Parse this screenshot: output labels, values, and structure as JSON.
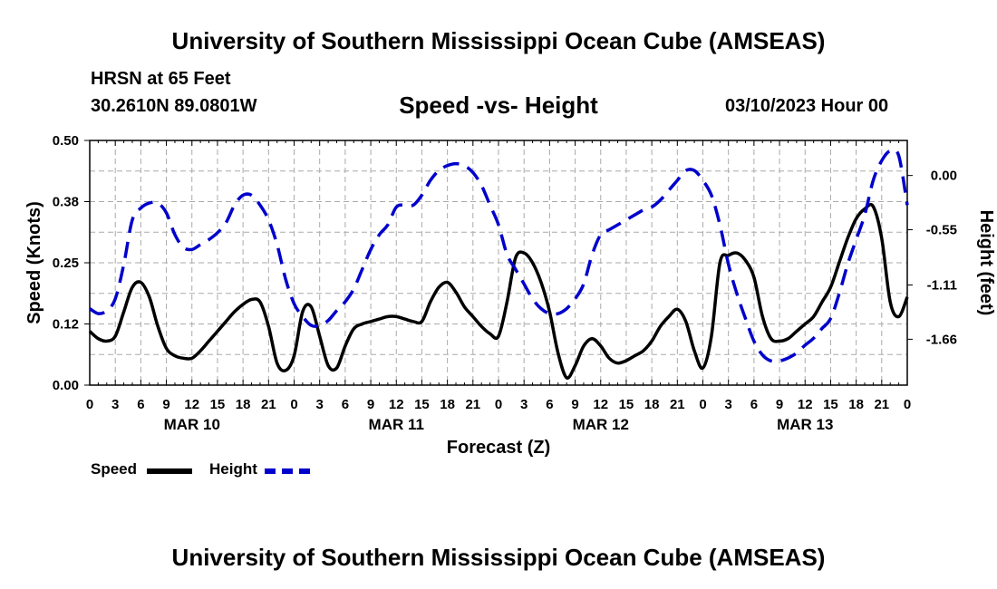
{
  "header": {
    "title": "University of Southern Mississippi Ocean Cube (AMSEAS)",
    "station": "HRSN at 65 Feet",
    "coords": "30.2610N  89.0801W",
    "subtitle": "Speed -vs- Height",
    "datetime": "03/10/2023 Hour 00",
    "footer_title": "University of Southern Mississippi Ocean Cube (AMSEAS)"
  },
  "legend": {
    "speed_label": "Speed",
    "height_label": "Height"
  },
  "colors": {
    "speed": "#000000",
    "height": "#0000cc",
    "grid": "#aaaaaa"
  },
  "chart_data": {
    "type": "line",
    "title": "Speed -vs- Height",
    "xlabel": "Forecast (Z)",
    "ylabel": "Speed (Knots)",
    "y2label": "Height (feet)",
    "xlim": [
      0,
      96
    ],
    "ylim": [
      0,
      0.5
    ],
    "y2lim": [
      -2.125,
      0.355
    ],
    "x_tick_labels": [
      "0",
      "3",
      "6",
      "9",
      "12",
      "15",
      "18",
      "21",
      "0",
      "3",
      "6",
      "9",
      "12",
      "15",
      "18",
      "21",
      "0",
      "3",
      "6",
      "9",
      "12",
      "15",
      "18",
      "21",
      "0",
      "3",
      "6",
      "9",
      "12",
      "15",
      "18",
      "21",
      "0"
    ],
    "y_tick_values": [
      0,
      0.125,
      0.25,
      0.375,
      0.5
    ],
    "y_tick_labels": [
      "0.00",
      "0.12",
      "0.25",
      "0.38",
      "0.50"
    ],
    "y2_tick_values": [
      0,
      -0.55,
      -1.11,
      -1.66
    ],
    "y2_tick_labels": [
      "0.00",
      "-0.55",
      "-1.11",
      "-1.66"
    ],
    "date_labels": [
      {
        "label": "MAR 10",
        "x": 12
      },
      {
        "label": "MAR 11",
        "x": 36
      },
      {
        "label": "MAR 12",
        "x": 60
      },
      {
        "label": "MAR 13",
        "x": 84
      }
    ],
    "series": [
      {
        "name": "Speed",
        "axis": "left",
        "style": "solid",
        "x": [
          0,
          1,
          2,
          3,
          4,
          5,
          6,
          7,
          8,
          9,
          10,
          11,
          12,
          13,
          14,
          15,
          16,
          17,
          18,
          19,
          20,
          21,
          22,
          23,
          24,
          25,
          26,
          27,
          28,
          29,
          30,
          31,
          32,
          33,
          34,
          35,
          36,
          37,
          38,
          39,
          40,
          41,
          42,
          43,
          44,
          45,
          46,
          47,
          48,
          49,
          50,
          51,
          52,
          53,
          54,
          55,
          56,
          57,
          58,
          59,
          60,
          61,
          62,
          63,
          64,
          65,
          66,
          67,
          68,
          69,
          70,
          71,
          72,
          73,
          74,
          75,
          76,
          77,
          78,
          79,
          80,
          81,
          82,
          83,
          84,
          85,
          86,
          87,
          88,
          89,
          90,
          91,
          92,
          93,
          94,
          95,
          96
        ],
        "values": [
          0.11,
          0.095,
          0.09,
          0.1,
          0.15,
          0.2,
          0.21,
          0.18,
          0.12,
          0.075,
          0.06,
          0.055,
          0.055,
          0.07,
          0.09,
          0.11,
          0.13,
          0.15,
          0.165,
          0.175,
          0.17,
          0.12,
          0.045,
          0.03,
          0.06,
          0.15,
          0.16,
          0.1,
          0.04,
          0.035,
          0.08,
          0.115,
          0.125,
          0.13,
          0.135,
          0.14,
          0.14,
          0.135,
          0.13,
          0.13,
          0.17,
          0.2,
          0.21,
          0.19,
          0.16,
          0.14,
          0.12,
          0.105,
          0.1,
          0.17,
          0.26,
          0.27,
          0.25,
          0.21,
          0.15,
          0.065,
          0.015,
          0.04,
          0.08,
          0.095,
          0.08,
          0.055,
          0.045,
          0.05,
          0.06,
          0.07,
          0.09,
          0.12,
          0.14,
          0.155,
          0.13,
          0.07,
          0.035,
          0.1,
          0.25,
          0.265,
          0.27,
          0.255,
          0.22,
          0.14,
          0.095,
          0.09,
          0.095,
          0.11,
          0.125,
          0.14,
          0.17,
          0.2,
          0.25,
          0.3,
          0.34,
          0.36,
          0.365,
          0.3,
          0.17,
          0.14,
          0.18
        ]
      },
      {
        "name": "Height",
        "axis": "right",
        "style": "dashed",
        "x": [
          0,
          1,
          2,
          3,
          4,
          5,
          6,
          7,
          8,
          9,
          10,
          11,
          12,
          13,
          14,
          15,
          16,
          17,
          18,
          19,
          20,
          21,
          22,
          23,
          24,
          25,
          26,
          27,
          28,
          29,
          30,
          31,
          32,
          33,
          34,
          35,
          36,
          37,
          38,
          39,
          40,
          41,
          42,
          43,
          44,
          45,
          46,
          47,
          48,
          49,
          50,
          51,
          52,
          53,
          54,
          55,
          56,
          57,
          58,
          59,
          60,
          61,
          62,
          63,
          64,
          65,
          66,
          67,
          68,
          69,
          70,
          71,
          72,
          73,
          74,
          75,
          76,
          77,
          78,
          79,
          80,
          81,
          82,
          83,
          84,
          85,
          86,
          87,
          88,
          89,
          90,
          91,
          92,
          93,
          94,
          95,
          96
        ],
        "values": [
          -1.35,
          -1.4,
          -1.37,
          -1.25,
          -0.9,
          -0.45,
          -0.33,
          -0.28,
          -0.28,
          -0.38,
          -0.6,
          -0.73,
          -0.75,
          -0.7,
          -0.65,
          -0.58,
          -0.48,
          -0.3,
          -0.2,
          -0.2,
          -0.3,
          -0.45,
          -0.7,
          -1.05,
          -1.3,
          -1.43,
          -1.52,
          -1.52,
          -1.47,
          -1.37,
          -1.28,
          -1.15,
          -0.95,
          -0.75,
          -0.6,
          -0.5,
          -0.32,
          -0.3,
          -0.3,
          -0.2,
          -0.05,
          0.05,
          0.1,
          0.12,
          0.1,
          0.03,
          -0.1,
          -0.3,
          -0.5,
          -0.8,
          -0.95,
          -1.1,
          -1.25,
          -1.35,
          -1.4,
          -1.4,
          -1.35,
          -1.25,
          -1.1,
          -0.8,
          -0.6,
          -0.55,
          -0.5,
          -0.45,
          -0.4,
          -0.35,
          -0.32,
          -0.25,
          -0.15,
          -0.05,
          0.05,
          0.05,
          -0.05,
          -0.2,
          -0.5,
          -0.9,
          -1.2,
          -1.45,
          -1.68,
          -1.82,
          -1.88,
          -1.88,
          -1.85,
          -1.8,
          -1.72,
          -1.65,
          -1.55,
          -1.45,
          -1.2,
          -0.9,
          -0.65,
          -0.4,
          -0.05,
          0.15,
          0.25,
          0.2,
          -0.3
        ]
      }
    ]
  }
}
